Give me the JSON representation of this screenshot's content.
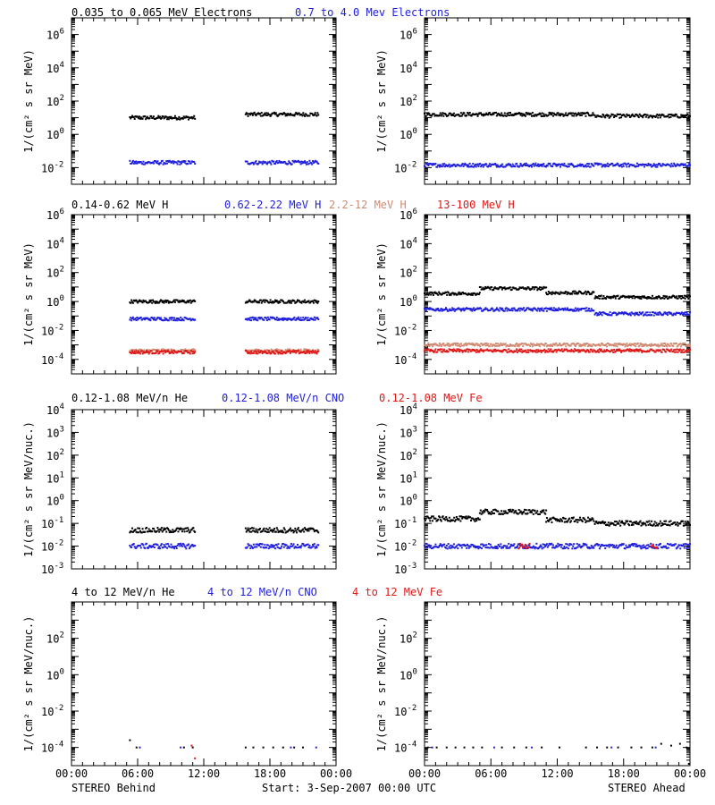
{
  "colors": {
    "black": "#000000",
    "blue": "#1f1fdc",
    "tan": "#d08a72",
    "red": "#e01818"
  },
  "footer": {
    "left_label": "STEREO Behind",
    "center_label": "Start:  3-Sep-2007 00:00 UTC",
    "right_label": "STEREO Ahead"
  },
  "x_axis": {
    "range_hours": [
      0,
      24
    ],
    "tick_hours": [
      0,
      6,
      12,
      18,
      24
    ],
    "tick_labels": [
      "00:00",
      "06:00",
      "12:00",
      "18:00",
      "00:00"
    ],
    "minor_tick_hours": [
      1,
      2,
      3,
      4,
      5,
      7,
      8,
      9,
      10,
      11,
      13,
      14,
      15,
      16,
      17,
      19,
      20,
      21,
      22,
      23
    ]
  },
  "rows": [
    {
      "titles": [
        {
          "text": "0.035 to 0.065 MeV Electrons",
          "color": "black"
        },
        {
          "text": "0.7 to 4.0 Mev Electrons",
          "color": "blue"
        }
      ],
      "ylabel": "1/(cm² s sr MeV)",
      "ylog_range": [
        -3,
        7
      ],
      "ticks": [
        {
          "exp": -2,
          "label": "10"
        },
        {
          "exp": 0,
          "label": "10"
        },
        {
          "exp": 2,
          "label": "10"
        },
        {
          "exp": 4,
          "label": "10"
        },
        {
          "exp": 6,
          "label": "10"
        }
      ],
      "tick_exps": [
        "-2",
        "0",
        "2",
        "4",
        "6"
      ]
    },
    {
      "titles": [
        {
          "text": "0.14-0.62 MeV H",
          "color": "black"
        },
        {
          "text": "0.62-2.22 MeV H",
          "color": "blue"
        },
        {
          "text": "2.2-12 MeV H",
          "color": "tan"
        },
        {
          "text": "13-100 MeV H",
          "color": "red"
        }
      ],
      "ylabel": "1/(cm² s sr MeV)",
      "ylog_range": [
        -5,
        6
      ],
      "tick_exps": [
        "-4",
        "-2",
        "0",
        "2",
        "4",
        "6"
      ]
    },
    {
      "titles": [
        {
          "text": "0.12-1.08 MeV/n He",
          "color": "black"
        },
        {
          "text": "0.12-1.08 MeV/n CNO",
          "color": "blue"
        },
        {
          "text": "0.12-1.08 MeV Fe",
          "color": "red"
        }
      ],
      "ylabel": "1/(cm² s sr MeV/nuc.)",
      "ylog_range": [
        -3,
        4
      ],
      "tick_exps": [
        "-3",
        "-2",
        "-1",
        "0",
        "1",
        "2",
        "3",
        "4"
      ]
    },
    {
      "titles": [
        {
          "text": "4 to 12 MeV/n He",
          "color": "black"
        },
        {
          "text": "4 to 12 MeV/n CNO",
          "color": "blue"
        },
        {
          "text": "4 to 12 MeV Fe",
          "color": "red"
        }
      ],
      "ylabel": "1/(cm² s sr MeV/nuc.)",
      "ylog_range": [
        -5,
        4
      ],
      "tick_exps": [
        "-4",
        "-2",
        "0",
        "2"
      ]
    }
  ],
  "chart_data": [
    {
      "type": "scatter",
      "panel": "Row 1 — STEREO Behind",
      "yscale": "log",
      "xlim_hours": [
        0,
        24
      ],
      "series": [
        {
          "name": "0.035 to 0.065 MeV Electrons",
          "color": "black",
          "segments": [
            [
              5.3,
              11.2,
              1.0
            ],
            [
              15.8,
              22.4,
              1.2
            ]
          ]
        },
        {
          "name": "0.7 to 4.0 Mev Electrons",
          "color": "blue",
          "segments": [
            [
              5.3,
              11.2,
              -1.7
            ],
            [
              15.8,
              22.4,
              -1.7
            ]
          ]
        }
      ]
    },
    {
      "type": "scatter",
      "panel": "Row 1 — STEREO Ahead",
      "yscale": "log",
      "xlim_hours": [
        0,
        24
      ],
      "series": [
        {
          "name": "0.035 to 0.065 MeV Electrons",
          "color": "black",
          "segments": [
            [
              0.0,
              15.3,
              1.2
            ],
            [
              15.4,
              24.0,
              1.1
            ]
          ]
        },
        {
          "name": "0.7 to 4.0 Mev Electrons",
          "color": "blue",
          "segments": [
            [
              0.0,
              15.3,
              -1.85
            ],
            [
              15.4,
              24.0,
              -1.85
            ]
          ]
        }
      ]
    },
    {
      "type": "scatter",
      "panel": "Row 2 — STEREO Behind",
      "yscale": "log",
      "xlim_hours": [
        0,
        24
      ],
      "series": [
        {
          "name": "0.14-0.62 MeV H",
          "color": "black",
          "segments": [
            [
              5.3,
              11.2,
              0.0
            ],
            [
              15.8,
              22.4,
              0.0
            ]
          ]
        },
        {
          "name": "0.62-2.22 MeV H",
          "color": "blue",
          "segments": [
            [
              5.3,
              11.2,
              -1.2
            ],
            [
              15.8,
              22.4,
              -1.2
            ]
          ]
        },
        {
          "name": "2.2-12 MeV H",
          "color": "tan",
          "segments": [
            [
              5.3,
              11.2,
              -3.4
            ],
            [
              15.8,
              22.4,
              -3.4
            ]
          ]
        },
        {
          "name": "13-100 MeV H",
          "color": "red",
          "segments": [
            [
              5.3,
              11.2,
              -3.5
            ],
            [
              15.8,
              22.4,
              -3.5
            ]
          ]
        }
      ]
    },
    {
      "type": "scatter",
      "panel": "Row 2 — STEREO Ahead",
      "yscale": "log",
      "xlim_hours": [
        0,
        24
      ],
      "series": [
        {
          "name": "0.14-0.62 MeV H",
          "color": "black",
          "segments": [
            [
              0.0,
              5.0,
              0.55
            ],
            [
              5.0,
              11.0,
              0.9
            ],
            [
              11.0,
              15.3,
              0.6
            ],
            [
              15.4,
              24.0,
              0.3
            ]
          ]
        },
        {
          "name": "0.62-2.22 MeV H",
          "color": "blue",
          "segments": [
            [
              0.0,
              15.3,
              -0.55
            ],
            [
              15.4,
              24.0,
              -0.85
            ]
          ]
        },
        {
          "name": "2.2-12 MeV H",
          "color": "tan",
          "segments": [
            [
              0.0,
              15.3,
              -3.0
            ],
            [
              15.4,
              24.0,
              -3.0
            ]
          ]
        },
        {
          "name": "13-100 MeV H",
          "color": "red",
          "segments": [
            [
              0.0,
              15.3,
              -3.4
            ],
            [
              15.4,
              24.0,
              -3.4
            ]
          ]
        }
      ]
    },
    {
      "type": "scatter",
      "panel": "Row 3 — STEREO Behind",
      "yscale": "log",
      "xlim_hours": [
        0,
        24
      ],
      "series": [
        {
          "name": "0.12-1.08 MeV/n He",
          "color": "black",
          "segments": [
            [
              5.3,
              11.2,
              -1.3
            ],
            [
              15.8,
              22.4,
              -1.3
            ]
          ]
        },
        {
          "name": "0.12-1.08 MeV/n CNO",
          "color": "blue",
          "segments": [
            [
              5.3,
              11.2,
              -2.0
            ],
            [
              15.8,
              22.4,
              -2.0
            ]
          ]
        }
      ]
    },
    {
      "type": "scatter",
      "panel": "Row 3 — STEREO Ahead",
      "yscale": "log",
      "xlim_hours": [
        0,
        24
      ],
      "series": [
        {
          "name": "0.12-1.08 MeV/n He",
          "color": "black",
          "segments": [
            [
              0.0,
              5.0,
              -0.8
            ],
            [
              5.0,
              11.0,
              -0.5
            ],
            [
              11.0,
              15.3,
              -0.85
            ],
            [
              15.4,
              24.0,
              -1.0
            ]
          ]
        },
        {
          "name": "0.12-1.08 MeV/n CNO",
          "color": "blue",
          "segments": [
            [
              0.0,
              15.3,
              -2.0
            ],
            [
              15.4,
              24.0,
              -2.0
            ]
          ]
        },
        {
          "name": "0.12-1.08 MeV Fe",
          "color": "red",
          "segments": [
            [
              8.5,
              9.5,
              -2.0
            ],
            [
              20.5,
              21.0,
              -2.0
            ]
          ]
        }
      ]
    },
    {
      "type": "scatter",
      "panel": "Row 4 — STEREO Behind",
      "yscale": "log",
      "xlim_hours": [
        0,
        24
      ],
      "series": [
        {
          "name": "4 to 12 MeV/n He",
          "color": "black",
          "points": [
            [
              5.3,
              -3.6
            ],
            [
              5.9,
              -4.0
            ],
            [
              10.2,
              -4.0
            ],
            [
              11.0,
              -4.0
            ],
            [
              15.8,
              -4.0
            ],
            [
              16.5,
              -4.0
            ],
            [
              17.4,
              -4.0
            ],
            [
              18.3,
              -4.0
            ],
            [
              19.2,
              -4.0
            ],
            [
              20.2,
              -4.0
            ],
            [
              21.0,
              -4.0
            ]
          ]
        },
        {
          "name": "4 to 12 MeV/n CNO",
          "color": "blue",
          "points": [
            [
              6.2,
              -4.0
            ],
            [
              9.9,
              -4.0
            ],
            [
              19.9,
              -4.0
            ],
            [
              22.2,
              -4.0
            ]
          ]
        },
        {
          "name": "4 to 12 MeV Fe",
          "color": "red",
          "points": [
            [
              11.2,
              -4.6
            ],
            [
              10.9,
              -3.9
            ]
          ]
        }
      ]
    },
    {
      "type": "scatter",
      "panel": "Row 4 — STEREO Ahead",
      "yscale": "log",
      "xlim_hours": [
        0,
        24
      ],
      "series": [
        {
          "name": "4 to 12 MeV/n He",
          "color": "black",
          "points": [
            [
              0.3,
              -4.0
            ],
            [
              1.1,
              -4.0
            ],
            [
              2.0,
              -4.0
            ],
            [
              2.8,
              -4.0
            ],
            [
              3.6,
              -4.0
            ],
            [
              4.4,
              -4.0
            ],
            [
              5.2,
              -4.0
            ],
            [
              7.0,
              -4.0
            ],
            [
              8.1,
              -4.0
            ],
            [
              9.2,
              -4.0
            ],
            [
              10.6,
              -4.0
            ],
            [
              12.2,
              -4.0
            ],
            [
              14.6,
              -4.0
            ],
            [
              15.6,
              -4.0
            ],
            [
              16.5,
              -4.0
            ],
            [
              17.5,
              -4.0
            ],
            [
              18.7,
              -4.0
            ],
            [
              19.6,
              -4.0
            ],
            [
              20.6,
              -4.0
            ],
            [
              21.4,
              -3.8
            ],
            [
              22.3,
              -3.9
            ],
            [
              23.1,
              -3.8
            ],
            [
              23.7,
              -4.0
            ],
            [
              23.9,
              -4.9
            ]
          ]
        },
        {
          "name": "4 to 12 MeV/n CNO",
          "color": "blue",
          "points": [
            [
              0.7,
              -4.0
            ],
            [
              6.3,
              -4.0
            ],
            [
              9.7,
              -4.0
            ],
            [
              16.9,
              -4.0
            ],
            [
              20.9,
              -4.0
            ]
          ]
        }
      ]
    }
  ]
}
